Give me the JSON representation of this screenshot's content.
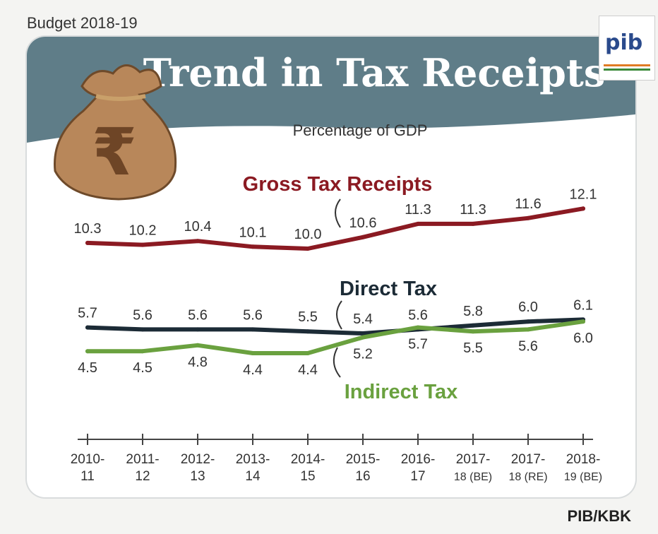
{
  "page": {
    "budget_label": "Budget 2018-19",
    "footer_credit": "PIB/KBK",
    "logo_text": "pib",
    "colors": {
      "banner": "#5f7d88",
      "gross": "#8b1a22",
      "direct": "#1c2b36",
      "indirect": "#6aa13f",
      "title": "#ffffff"
    },
    "icons": [
      "money-bag-icon",
      "rupee-icon",
      "pib-logo"
    ]
  },
  "chart_data": {
    "type": "line",
    "title": "Trend in Tax Receipts",
    "subtitle": "Percentage of GDP",
    "categories": [
      [
        "2010-",
        "11"
      ],
      [
        "2011-",
        "12"
      ],
      [
        "2012-",
        "13"
      ],
      [
        "2013-",
        "14"
      ],
      [
        "2014-",
        "15"
      ],
      [
        "2015-",
        "16"
      ],
      [
        "2016-",
        "17"
      ],
      [
        "2017-",
        "18 (BE)"
      ],
      [
        "2017-",
        "18 (RE)"
      ],
      [
        "2018-",
        "19 (BE)"
      ]
    ],
    "series": [
      {
        "name": "Gross Tax Receipts",
        "values": [
          10.3,
          10.2,
          10.4,
          10.1,
          10.0,
          10.6,
          11.3,
          11.3,
          11.6,
          12.1
        ],
        "labels": [
          "10.3",
          "10.2",
          "10.4",
          "10.1",
          "10.0",
          "10.6",
          "11.3",
          "11.3",
          "11.6",
          "12.1"
        ]
      },
      {
        "name": "Direct Tax",
        "values": [
          5.7,
          5.6,
          5.6,
          5.6,
          5.5,
          5.4,
          5.6,
          5.8,
          6.0,
          6.1
        ],
        "labels": [
          "5.7",
          "5.6",
          "5.6",
          "5.6",
          "5.5",
          "5.4",
          "5.6",
          "5.8",
          "6.0",
          "6.1"
        ]
      },
      {
        "name": "Indirect Tax",
        "values": [
          4.5,
          4.5,
          4.8,
          4.4,
          4.4,
          5.2,
          5.7,
          5.5,
          5.6,
          6.0
        ],
        "labels": [
          "4.5",
          "4.5",
          "4.8",
          "4.4",
          "4.4",
          "5.2",
          "5.7",
          "5.5",
          "5.6",
          "6.0"
        ]
      }
    ],
    "xlabel": "",
    "ylabel": "",
    "grid": false,
    "legend": "inline-labels"
  }
}
